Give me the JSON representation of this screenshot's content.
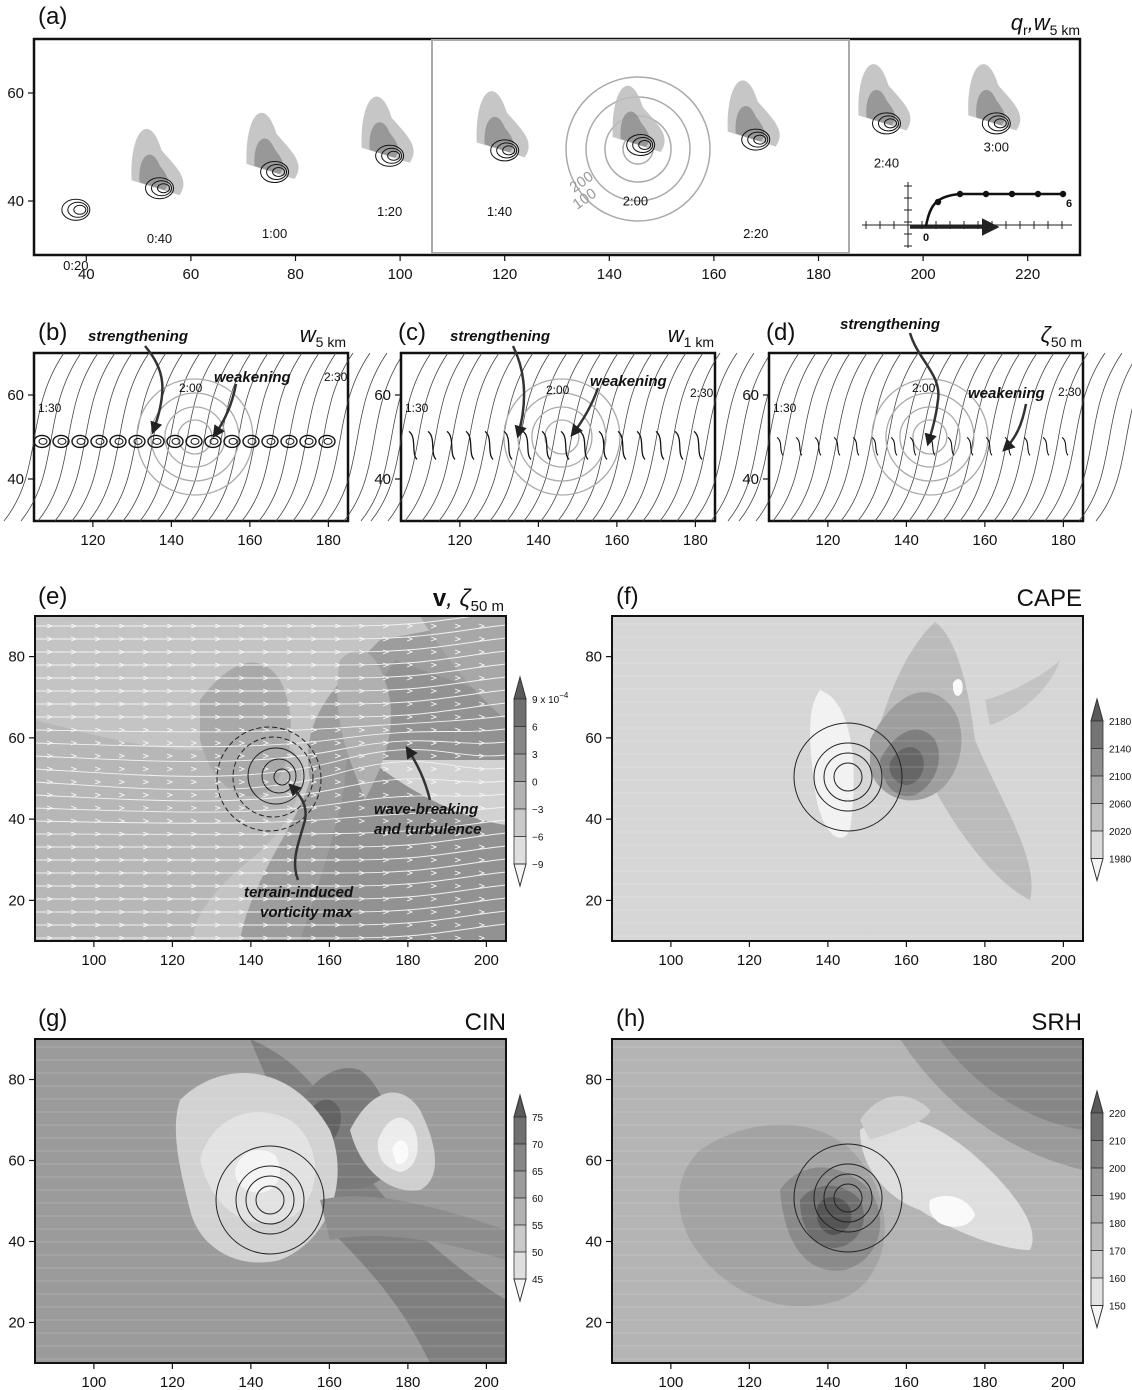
{
  "figure": {
    "panels": [
      {
        "id": "a",
        "letter": "(a)",
        "title": "q",
        "title_sub": "r",
        "title_extra": ",w",
        "title_sub2": "5 km",
        "ring_labels": [
          "200",
          "100"
        ],
        "inset_labels": [
          "0",
          "6"
        ],
        "time_labels": [
          {
            "text": "0:20",
            "x": 38,
            "y": 32
          },
          {
            "text": "0:40",
            "x": 54,
            "y": 37
          },
          {
            "text": "1:00",
            "x": 76,
            "y": 38
          },
          {
            "text": "1:20",
            "x": 98,
            "y": 42
          },
          {
            "text": "1:40",
            "x": 119,
            "y": 42
          },
          {
            "text": "2:00",
            "x": 145,
            "y": 44
          },
          {
            "text": "2:20",
            "x": 168,
            "y": 38
          },
          {
            "text": "2:40",
            "x": 193,
            "y": 51
          },
          {
            "text": "3:00",
            "x": 214,
            "y": 54
          }
        ]
      },
      {
        "id": "b",
        "letter": "(b)",
        "title": "w",
        "title_sub": "5 km",
        "ann1": "strengthening",
        "ann2": "weakening",
        "t_start": "1:30",
        "t_mid": "2:00",
        "t_end": "2:30"
      },
      {
        "id": "c",
        "letter": "(c)",
        "title": "w",
        "title_sub": "1 km",
        "ann1": "strengthening",
        "ann2": "weakening",
        "t_start": "1:30",
        "t_mid": "2:00",
        "t_end": "2:30"
      },
      {
        "id": "d",
        "letter": "(d)",
        "title": "ζ",
        "title_sub": "50 m",
        "ann1": "strengthening",
        "ann2": "weakening",
        "t_start": "1:30",
        "t_mid": "2:00",
        "t_end": "2:30"
      },
      {
        "id": "e",
        "letter": "(e)",
        "title_bold": "v",
        "title": ", ζ",
        "title_sub": "50 m",
        "ann1_lines": [
          "wave-breaking",
          "and turbulence"
        ],
        "ann2_lines": [
          "terrain-induced",
          "vorticity max"
        ],
        "cbar_labels": [
          "9 x 10",
          "6",
          "3",
          "0",
          "−3",
          "−6",
          "−9"
        ],
        "cbar_exp": "−4"
      },
      {
        "id": "f",
        "letter": "(f)",
        "title": "CAPE",
        "cbar_labels": [
          "2180",
          "2140",
          "2100",
          "2060",
          "2020",
          "1980"
        ]
      },
      {
        "id": "g",
        "letter": "(g)",
        "title": "CIN",
        "cbar_labels": [
          "75",
          "70",
          "65",
          "60",
          "55",
          "50",
          "45"
        ]
      },
      {
        "id": "h",
        "letter": "(h)",
        "title": "SRH",
        "cbar_labels": [
          "220",
          "210",
          "200",
          "190",
          "180",
          "170",
          "160",
          "150"
        ]
      }
    ]
  },
  "chart_data": [
    {
      "type": "heatmap",
      "panel": "a",
      "title": "q_r, w_5 km",
      "x_ticks": [
        40,
        60,
        80,
        100,
        120,
        140,
        160,
        180,
        200,
        220
      ],
      "xlim": [
        30,
        230
      ],
      "y_ticks": [
        40,
        60
      ],
      "ylim": [
        30,
        70
      ],
      "storm_track": [
        {
          "time": "0:20",
          "x": 38,
          "y": 38
        },
        {
          "time": "0:40",
          "x": 54,
          "y": 42
        },
        {
          "time": "1:00",
          "x": 76,
          "y": 45
        },
        {
          "time": "1:20",
          "x": 98,
          "y": 48
        },
        {
          "time": "1:40",
          "x": 120,
          "y": 49
        },
        {
          "time": "2:00",
          "x": 146,
          "y": 50
        },
        {
          "time": "2:20",
          "x": 168,
          "y": 51
        },
        {
          "time": "2:40",
          "x": 193,
          "y": 54
        },
        {
          "time": "3:00",
          "x": 214,
          "y": 54
        }
      ],
      "terrain_center": [
        145,
        50
      ],
      "terrain_contours": [
        "100",
        "200"
      ],
      "highlight_box_x": [
        106,
        185
      ]
    },
    {
      "type": "heatmap",
      "panel": "b",
      "title": "w_5 km",
      "x_ticks": [
        120,
        140,
        160,
        180
      ],
      "xlim": [
        105,
        185
      ],
      "y_ticks": [
        40,
        60
      ],
      "ylim": [
        30,
        70
      ]
    },
    {
      "type": "heatmap",
      "panel": "c",
      "title": "w_1 km",
      "x_ticks": [
        120,
        140,
        160,
        180
      ],
      "xlim": [
        105,
        185
      ],
      "y_ticks": [
        40,
        60
      ],
      "ylim": [
        30,
        70
      ]
    },
    {
      "type": "heatmap",
      "panel": "d",
      "title": "ζ_50 m",
      "x_ticks": [
        120,
        140,
        160,
        180
      ],
      "xlim": [
        105,
        185
      ],
      "y_ticks": [
        40,
        60
      ],
      "ylim": [
        30,
        70
      ]
    },
    {
      "type": "heatmap",
      "panel": "e",
      "title": "v, ζ_50 m",
      "x_ticks": [
        100,
        120,
        140,
        160,
        180,
        200
      ],
      "xlim": [
        85,
        205
      ],
      "y_ticks": [
        20,
        40,
        60,
        80
      ],
      "ylim": [
        10,
        90
      ],
      "colorbar": [
        9,
        6,
        3,
        0,
        -3,
        -6,
        -9
      ],
      "colorbar_scale": "x 10^-4"
    },
    {
      "type": "heatmap",
      "panel": "f",
      "title": "CAPE",
      "x_ticks": [
        100,
        120,
        140,
        160,
        180,
        200
      ],
      "xlim": [
        85,
        205
      ],
      "y_ticks": [
        20,
        40,
        60,
        80
      ],
      "ylim": [
        10,
        90
      ],
      "colorbar": [
        2180,
        2140,
        2100,
        2060,
        2020,
        1980
      ]
    },
    {
      "type": "heatmap",
      "panel": "g",
      "title": "CIN",
      "x_ticks": [
        100,
        120,
        140,
        160,
        180,
        200
      ],
      "xlim": [
        85,
        205
      ],
      "y_ticks": [
        20,
        40,
        60,
        80
      ],
      "ylim": [
        10,
        90
      ],
      "colorbar": [
        75,
        70,
        65,
        60,
        55,
        50,
        45
      ]
    },
    {
      "type": "heatmap",
      "panel": "h",
      "title": "SRH",
      "x_ticks": [
        100,
        120,
        140,
        160,
        180,
        200
      ],
      "xlim": [
        85,
        205
      ],
      "y_ticks": [
        20,
        40,
        60,
        80
      ],
      "ylim": [
        10,
        90
      ],
      "colorbar": [
        220,
        210,
        200,
        190,
        180,
        170,
        160,
        150
      ]
    }
  ]
}
